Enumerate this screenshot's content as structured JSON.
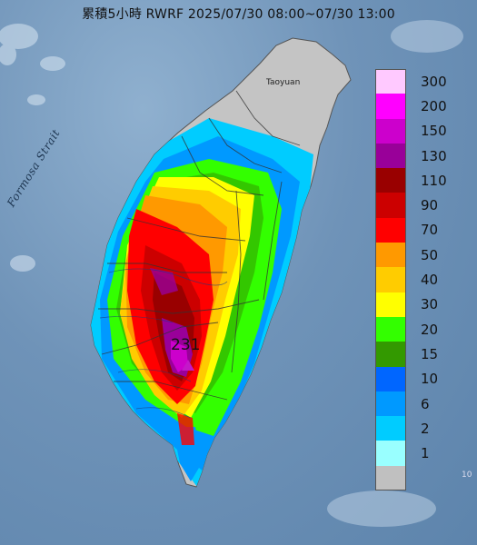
{
  "map": {
    "title": "累積5小時 RWRF 2025/07/30 08:00~07/30 13:00",
    "strait_label": "Formosa Strait",
    "city_label": "Taoyuan",
    "max_value_label": "231",
    "corner_mark": "10"
  },
  "legend": [
    {
      "label": "300",
      "color": "#ffc9ff"
    },
    {
      "label": "200",
      "color": "#ff00ff"
    },
    {
      "label": "150",
      "color": "#cc00cc"
    },
    {
      "label": "130",
      "color": "#990099"
    },
    {
      "label": "110",
      "color": "#990000"
    },
    {
      "label": "90",
      "color": "#cc0000"
    },
    {
      "label": "70",
      "color": "#ff0000"
    },
    {
      "label": "50",
      "color": "#ff9900"
    },
    {
      "label": "40",
      "color": "#ffcc00"
    },
    {
      "label": "30",
      "color": "#ffff00"
    },
    {
      "label": "20",
      "color": "#33ff00"
    },
    {
      "label": "15",
      "color": "#339900"
    },
    {
      "label": "10",
      "color": "#0066ff"
    },
    {
      "label": "6",
      "color": "#0099ff"
    },
    {
      "label": "2",
      "color": "#00ccff"
    },
    {
      "label": "1",
      "color": "#99ffff"
    },
    {
      "label": "",
      "color": "#c0c0c0"
    }
  ]
}
